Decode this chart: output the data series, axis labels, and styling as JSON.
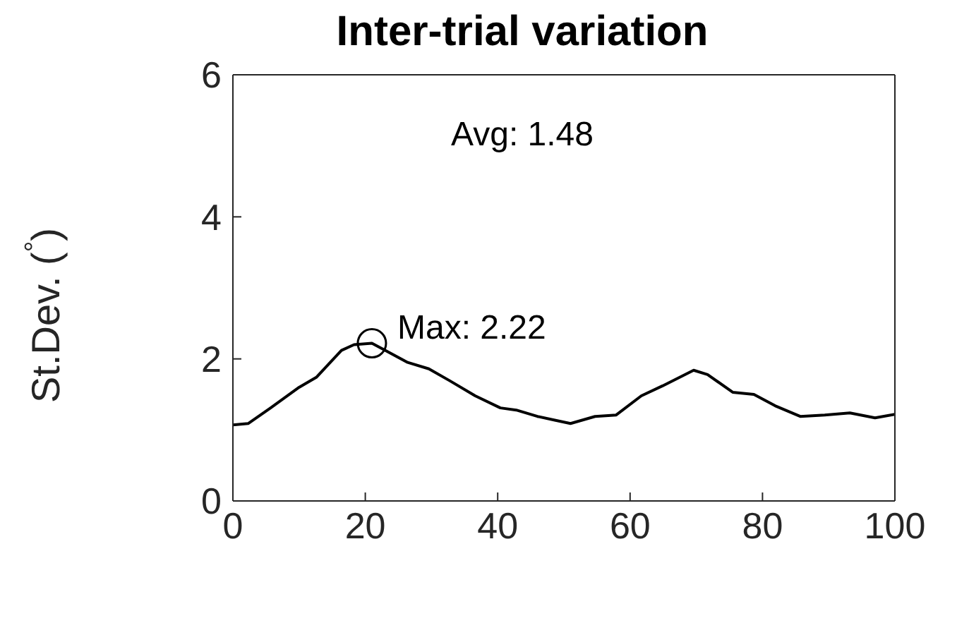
{
  "chart_data": {
    "type": "line",
    "title": "Inter-trial variation",
    "ylabel": "St.Dev. ($^{°}$)",
    "x": [
      0,
      2.3,
      5.7,
      10,
      12.6,
      16.4,
      18.3,
      21,
      22.6,
      26.4,
      29.6,
      32.8,
      36.6,
      40.4,
      42.8,
      46,
      48.5,
      51,
      54.7,
      57.9,
      61.7,
      64.9,
      69.6,
      71.7,
      75.5,
      78.7,
      81.9,
      85.7,
      89.4,
      93.2,
      97,
      100
    ],
    "series": [
      {
        "color": "#000000",
        "values": [
          1.07,
          1.09,
          1.31,
          1.6,
          1.74,
          2.12,
          2.2,
          2.22,
          2.14,
          1.95,
          1.86,
          1.69,
          1.48,
          1.31,
          1.28,
          1.19,
          1.14,
          1.09,
          1.19,
          1.21,
          1.48,
          1.62,
          1.84,
          1.78,
          1.53,
          1.5,
          1.34,
          1.19,
          1.21,
          1.24,
          1.17,
          1.22
        ]
      }
    ],
    "xlim": [
      0,
      100
    ],
    "xticks": [
      0,
      20,
      40,
      60,
      80,
      100
    ],
    "ylim": [
      0,
      6
    ],
    "yticks": [
      0,
      2,
      4,
      6
    ],
    "annotations": [
      "Avg: 1.48",
      {
        "text": "Max: 2.22",
        "x": 21,
        "y": 2.22
      }
    ],
    "grid": false,
    "marker": "none",
    "line_style": "solid"
  }
}
